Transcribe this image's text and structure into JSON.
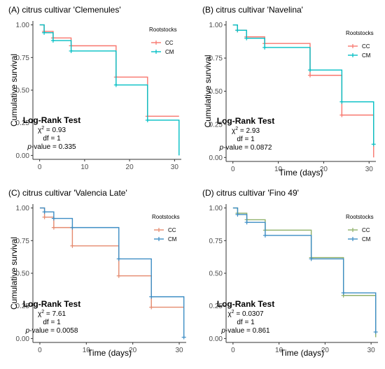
{
  "colors": {
    "cc": "#F8766D",
    "cm": "#00BFC4",
    "cm_blue": "#3C8DC4",
    "cc_light": "#E58A6E",
    "cc_olive": "#8FB069",
    "axis_text": "#4D4D4D",
    "axis_line": "#333333"
  },
  "legend_title": "Rootstocks",
  "test_title": "Log-Rank Test",
  "chi_prefix": "χ",
  "chi_sup": "2",
  "p_prefix": "p",
  "chart_data": [
    {
      "type": "line",
      "title": "(A) citrus cultivar 'Clemenules'",
      "xlabel": "",
      "ylabel": "Cumulative survival",
      "xlim": [
        -1.5,
        31.5
      ],
      "ylim": [
        -0.03,
        1.03
      ],
      "xticks": [
        0,
        10,
        20,
        30
      ],
      "yticks": [
        0,
        0.25,
        0.5,
        0.75,
        1
      ],
      "ytick_labels": [
        "0.00",
        "0.25",
        "0.50",
        "0.75",
        "1.00"
      ],
      "legend": [
        "CC",
        "CM"
      ],
      "grid": false,
      "test": {
        "chi": "= 0.93",
        "df": "df = 1",
        "pval": "-value = 0.335"
      },
      "series": [
        {
          "name": "CC",
          "steps": [
            [
              0,
              1
            ],
            [
              1,
              0.95
            ],
            [
              3,
              0.9
            ],
            [
              7,
              0.84
            ],
            [
              17,
              0.6
            ],
            [
              24,
              0.3
            ],
            [
              31,
              0.3
            ]
          ],
          "censor": [
            [
              1,
              0.95
            ],
            [
              3,
              0.9
            ],
            [
              7,
              0.84
            ],
            [
              17,
              0.6
            ],
            [
              24,
              0.3
            ]
          ]
        },
        {
          "name": "CM",
          "steps": [
            [
              0,
              1
            ],
            [
              1,
              0.94
            ],
            [
              3,
              0.88
            ],
            [
              7,
              0.8
            ],
            [
              17,
              0.54
            ],
            [
              24,
              0.27
            ],
            [
              31,
              0.27
            ],
            [
              31,
              0.0
            ]
          ],
          "censor": [
            [
              1,
              0.94
            ],
            [
              3,
              0.88
            ],
            [
              7,
              0.8
            ],
            [
              17,
              0.54
            ],
            [
              24,
              0.27
            ]
          ]
        }
      ]
    },
    {
      "type": "line",
      "title": "(B) citrus cultivar 'Navelina'",
      "xlabel": "Time (days)",
      "ylabel": "Cumulative survival",
      "xlim": [
        -1.5,
        31.5
      ],
      "ylim": [
        -0.03,
        1.03
      ],
      "xticks": [
        0,
        10,
        20,
        30
      ],
      "yticks": [
        0,
        0.25,
        0.5,
        0.75,
        1
      ],
      "ytick_labels": [
        "0.00",
        "0.25",
        "0.50",
        "0.75",
        "1.00"
      ],
      "legend": [
        "CC",
        "CM"
      ],
      "grid": false,
      "test": {
        "chi": "= 2.93",
        "df": "df = 1",
        "pval": "-value = 0.0872"
      },
      "series": [
        {
          "name": "CC",
          "steps": [
            [
              0,
              1
            ],
            [
              1,
              0.96
            ],
            [
              3,
              0.91
            ],
            [
              7,
              0.86
            ],
            [
              17,
              0.62
            ],
            [
              24,
              0.32
            ],
            [
              31,
              0.32
            ],
            [
              31,
              0.0
            ]
          ],
          "censor": [
            [
              1,
              0.96
            ],
            [
              3,
              0.91
            ],
            [
              7,
              0.86
            ],
            [
              17,
              0.62
            ],
            [
              24,
              0.32
            ]
          ]
        },
        {
          "name": "CM",
          "steps": [
            [
              0,
              1
            ],
            [
              1,
              0.96
            ],
            [
              3,
              0.9
            ],
            [
              7,
              0.83
            ],
            [
              17,
              0.66
            ],
            [
              24,
              0.42
            ],
            [
              31,
              0.42
            ],
            [
              31,
              0.1
            ]
          ],
          "censor": [
            [
              1,
              0.96
            ],
            [
              3,
              0.9
            ],
            [
              7,
              0.83
            ],
            [
              17,
              0.66
            ],
            [
              24,
              0.42
            ],
            [
              31,
              0.1
            ]
          ]
        }
      ]
    },
    {
      "type": "line",
      "title": "(C) citrus cultivar 'Valencia Late'",
      "xlabel": "Time (days)",
      "ylabel": "Cumulative survival",
      "xlim": [
        -1.5,
        31.5
      ],
      "ylim": [
        -0.03,
        1.03
      ],
      "xticks": [
        0,
        10,
        20,
        30
      ],
      "yticks": [
        0,
        0.25,
        0.5,
        0.75,
        1
      ],
      "ytick_labels": [
        "0.00",
        "0.25",
        "0.50",
        "0.75",
        "1.00"
      ],
      "legend": [
        "CC",
        "CM"
      ],
      "grid": false,
      "test": {
        "chi": "= 7.61",
        "df": "df = 1",
        "pval": "-value = 0.0058"
      },
      "series": [
        {
          "name": "CC",
          "steps": [
            [
              0,
              1
            ],
            [
              1,
              0.93
            ],
            [
              3,
              0.85
            ],
            [
              7,
              0.71
            ],
            [
              17,
              0.48
            ],
            [
              24,
              0.24
            ],
            [
              31,
              0.24
            ]
          ],
          "censor": [
            [
              1,
              0.93
            ],
            [
              3,
              0.85
            ],
            [
              7,
              0.71
            ],
            [
              17,
              0.48
            ],
            [
              24,
              0.24
            ]
          ]
        },
        {
          "name": "CM",
          "steps": [
            [
              0,
              1
            ],
            [
              1,
              0.97
            ],
            [
              3,
              0.92
            ],
            [
              7,
              0.85
            ],
            [
              17,
              0.61
            ],
            [
              24,
              0.32
            ],
            [
              31,
              0.32
            ],
            [
              31,
              0.01
            ]
          ],
          "censor": [
            [
              1,
              0.97
            ],
            [
              3,
              0.92
            ],
            [
              7,
              0.85
            ],
            [
              17,
              0.61
            ],
            [
              24,
              0.32
            ],
            [
              31,
              0.01
            ]
          ]
        }
      ]
    },
    {
      "type": "line",
      "title": "(D) citrus cultivar 'Fino 49'",
      "xlabel": "Time (days)",
      "ylabel": "",
      "xlim": [
        -1.5,
        31.5
      ],
      "ylim": [
        -0.03,
        1.03
      ],
      "xticks": [
        0,
        10,
        20,
        30
      ],
      "yticks": [
        0,
        0.25,
        0.5,
        0.75,
        1
      ],
      "ytick_labels": [
        "0.00",
        "0.25",
        "0.50",
        "0.75",
        "1.00"
      ],
      "legend": [
        "CC",
        "CM"
      ],
      "grid": false,
      "test": {
        "chi": "= 0.0307",
        "df": "df = 1",
        "pval": "-value = 0.861"
      },
      "series": [
        {
          "name": "CC",
          "steps": [
            [
              0,
              1
            ],
            [
              1,
              0.96
            ],
            [
              3,
              0.91
            ],
            [
              7,
              0.83
            ],
            [
              17,
              0.62
            ],
            [
              24,
              0.33
            ],
            [
              31,
              0.33
            ],
            [
              31,
              0.01
            ]
          ],
          "censor": [
            [
              1,
              0.96
            ],
            [
              3,
              0.91
            ],
            [
              7,
              0.83
            ],
            [
              17,
              0.62
            ],
            [
              24,
              0.33
            ]
          ]
        },
        {
          "name": "CM",
          "steps": [
            [
              0,
              1
            ],
            [
              1,
              0.95
            ],
            [
              3,
              0.89
            ],
            [
              7,
              0.79
            ],
            [
              17,
              0.61
            ],
            [
              24,
              0.35
            ],
            [
              31,
              0.35
            ],
            [
              31,
              0.05
            ]
          ],
          "censor": [
            [
              1,
              0.95
            ],
            [
              3,
              0.89
            ],
            [
              7,
              0.79
            ],
            [
              17,
              0.61
            ],
            [
              24,
              0.35
            ],
            [
              31,
              0.05
            ]
          ]
        }
      ]
    }
  ]
}
